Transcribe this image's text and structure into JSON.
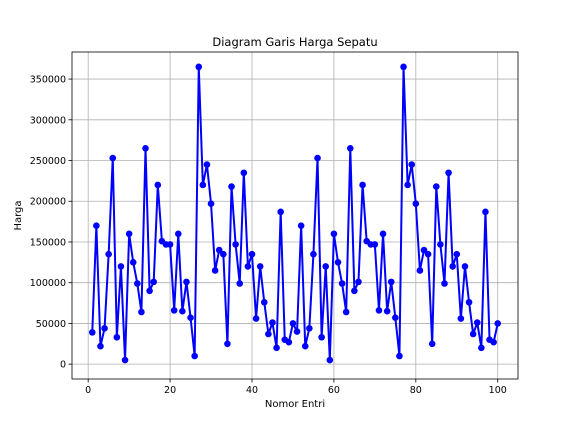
{
  "chart_data": {
    "type": "line",
    "title": "Diagram Garis Harga Sepatu",
    "xlabel": "Nomor Entri",
    "ylabel": "Harga",
    "xlim": [
      -3.95,
      104.95
    ],
    "ylim": [
      -18250,
      383250
    ],
    "x_ticks": [
      0,
      20,
      40,
      60,
      80,
      100
    ],
    "y_ticks": [
      0,
      50000,
      100000,
      150000,
      200000,
      250000,
      300000,
      350000
    ],
    "grid": true,
    "legend": "none",
    "series_color": "#0000ff",
    "marker": "circle",
    "x": [
      1,
      2,
      3,
      4,
      5,
      6,
      7,
      8,
      9,
      10,
      11,
      12,
      13,
      14,
      15,
      16,
      17,
      18,
      19,
      20,
      21,
      22,
      23,
      24,
      25,
      26,
      27,
      28,
      29,
      30,
      31,
      32,
      33,
      34,
      35,
      36,
      37,
      38,
      39,
      40,
      41,
      42,
      43,
      44,
      45,
      46,
      47,
      48,
      49,
      50,
      51,
      52,
      53,
      54,
      55,
      56,
      57,
      58,
      59,
      60,
      61,
      62,
      63,
      64,
      65,
      66,
      67,
      68,
      69,
      70,
      71,
      72,
      73,
      74,
      75,
      76,
      77,
      78,
      79,
      80,
      81,
      82,
      83,
      84,
      85,
      86,
      87,
      88,
      89,
      90,
      91,
      92,
      93,
      94,
      95,
      96,
      97,
      98,
      99,
      100
    ],
    "values": [
      39000,
      170000,
      22000,
      44000,
      135000,
      253000,
      33000,
      120000,
      5000,
      160000,
      125000,
      99000,
      64000,
      265000,
      90000,
      101000,
      220000,
      151000,
      147000,
      147000,
      66000,
      160000,
      65000,
      101000,
      57000,
      10000,
      365000,
      220000,
      245000,
      197000,
      115000,
      140000,
      135000,
      25000,
      218000,
      147000,
      99000,
      235000,
      120000,
      135000,
      56000,
      120000,
      76000,
      37000,
      51000,
      20000,
      187000,
      30000,
      27000,
      50000,
      40000,
      170000,
      22000,
      44000,
      135000,
      253000,
      33000,
      120000,
      5000,
      160000,
      125000,
      99000,
      64000,
      265000,
      90000,
      101000,
      220000,
      151000,
      147000,
      147000,
      66000,
      160000,
      65000,
      101000,
      57000,
      10000,
      365000,
      220000,
      245000,
      197000,
      115000,
      140000,
      135000,
      25000,
      218000,
      147000,
      99000,
      235000,
      120000,
      135000,
      56000,
      120000,
      76000,
      37000,
      51000,
      20000,
      187000,
      30000,
      27000,
      50000
    ]
  }
}
